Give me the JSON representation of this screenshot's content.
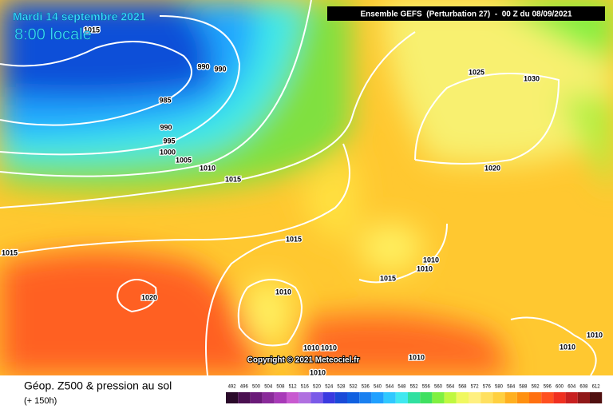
{
  "header": {
    "date": "Mardi 14 septembre 2021",
    "time": "8:00 locale",
    "run": "Ensemble GEFS  (Perturbation 27)  -  00 Z du 08/09/2021"
  },
  "copyright": "Copyright © 2021 Meteociel.fr",
  "isobar_labels": [
    1015,
    990,
    990,
    985,
    990,
    995,
    1000,
    1005,
    1010,
    1015,
    1015,
    1015,
    1020,
    1010,
    1015,
    1010,
    1010,
    1025,
    1030,
    1020,
    1010,
    1010,
    1010,
    1010,
    1010,
    1010
  ],
  "legend": {
    "title": "Géop. Z500 & pression au sol",
    "lead": "(+ 150h)",
    "scale": [
      492,
      496,
      500,
      504,
      508,
      512,
      516,
      520,
      524,
      528,
      532,
      536,
      540,
      544,
      548,
      552,
      556,
      560,
      564,
      568,
      572,
      576,
      580,
      584,
      588,
      592,
      596,
      600,
      604,
      608,
      612
    ],
    "colors": [
      "#2a0a2a",
      "#4a1050",
      "#6a1a78",
      "#8a2a9a",
      "#a83ab8",
      "#c85ad0",
      "#b070e0",
      "#7a5ae8",
      "#3a3ae0",
      "#1a4ad8",
      "#1060e0",
      "#1a80f0",
      "#20a0ff",
      "#30c8ff",
      "#40e8f0",
      "#30e0a0",
      "#40e060",
      "#80f040",
      "#c0f840",
      "#f0f860",
      "#fff080",
      "#ffe060",
      "#ffd040",
      "#ffb020",
      "#ff9010",
      "#ff7010",
      "#ff5020",
      "#f03020",
      "#c82020",
      "#901818",
      "#501010"
    ]
  }
}
